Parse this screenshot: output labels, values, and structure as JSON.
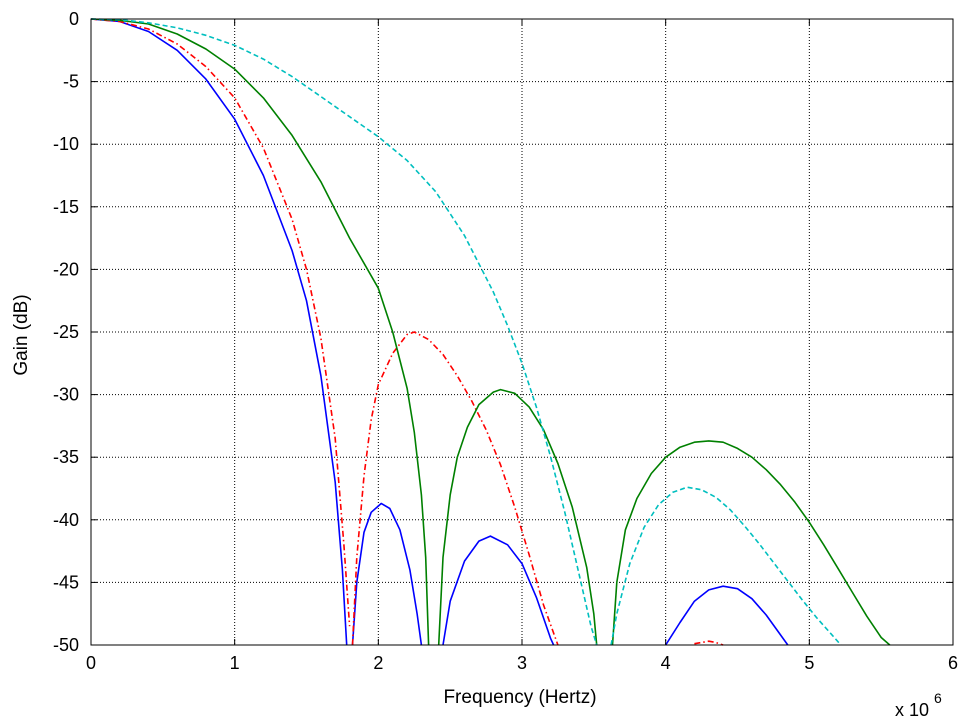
{
  "chart_data": {
    "type": "line",
    "title": "",
    "xlabel": "Frequency (Hertz)",
    "ylabel": "Gain (dB)",
    "x_exponent_label": {
      "base": "x 10",
      "exp": "6"
    },
    "xlim": [
      0,
      6
    ],
    "ylim": [
      -50,
      0
    ],
    "x_ticks": [
      0,
      1,
      2,
      3,
      4,
      5,
      6
    ],
    "y_ticks": [
      0,
      -5,
      -10,
      -15,
      -20,
      -25,
      -30,
      -35,
      -40,
      -45,
      -50
    ],
    "x_tick_labels": [
      "0",
      "1",
      "2",
      "3",
      "4",
      "5",
      "6"
    ],
    "y_tick_labels": [
      "0",
      "-5",
      "-10",
      "-15",
      "-20",
      "-25",
      "-30",
      "-35",
      "-40",
      "-45",
      "-50"
    ],
    "grid": true,
    "grid_style": "dotted",
    "series": [
      {
        "color": "#0000ff",
        "style": "solid",
        "segments": [
          [
            [
              0,
              0
            ],
            [
              0.2,
              -0.2
            ],
            [
              0.4,
              -1.0
            ],
            [
              0.6,
              -2.5
            ],
            [
              0.8,
              -4.8
            ],
            [
              1.0,
              -8.0
            ],
            [
              1.2,
              -12.5
            ],
            [
              1.4,
              -18.5
            ],
            [
              1.5,
              -22.5
            ],
            [
              1.6,
              -28.5
            ],
            [
              1.7,
              -37
            ],
            [
              1.75,
              -44
            ],
            [
              1.78,
              -50
            ]
          ],
          [
            [
              1.82,
              -50
            ],
            [
              1.85,
              -45
            ],
            [
              1.9,
              -41
            ],
            [
              1.95,
              -39.4
            ],
            [
              2.02,
              -38.7
            ],
            [
              2.08,
              -39.1
            ],
            [
              2.15,
              -40.8
            ],
            [
              2.22,
              -44.0
            ],
            [
              2.27,
              -47.5
            ],
            [
              2.3,
              -50
            ]
          ],
          [
            [
              2.45,
              -50
            ],
            [
              2.5,
              -46.5
            ],
            [
              2.6,
              -43.3
            ],
            [
              2.7,
              -41.7
            ],
            [
              2.78,
              -41.3
            ],
            [
              2.9,
              -42.0
            ],
            [
              3.0,
              -43.5
            ],
            [
              3.1,
              -46.2
            ],
            [
              3.2,
              -49.5
            ],
            [
              3.22,
              -50
            ]
          ],
          [
            [
              4.0,
              -50
            ],
            [
              4.1,
              -48.2
            ],
            [
              4.2,
              -46.5
            ],
            [
              4.3,
              -45.6
            ],
            [
              4.4,
              -45.3
            ],
            [
              4.5,
              -45.5
            ],
            [
              4.6,
              -46.3
            ],
            [
              4.7,
              -47.6
            ],
            [
              4.8,
              -49.2
            ],
            [
              4.85,
              -50
            ]
          ]
        ]
      },
      {
        "color": "#ff0000",
        "style": "dashdot",
        "segments": [
          [
            [
              0,
              0
            ],
            [
              0.2,
              -0.2
            ],
            [
              0.4,
              -0.8
            ],
            [
              0.6,
              -2.0
            ],
            [
              0.8,
              -3.8
            ],
            [
              1.0,
              -6.3
            ],
            [
              1.2,
              -10.3
            ],
            [
              1.4,
              -16.0
            ],
            [
              1.5,
              -20.0
            ],
            [
              1.6,
              -25.5
            ],
            [
              1.7,
              -33.5
            ],
            [
              1.76,
              -42
            ],
            [
              1.8,
              -48.5
            ]
          ],
          [
            [
              1.82,
              -50
            ],
            [
              1.85,
              -43
            ],
            [
              1.9,
              -36.5
            ],
            [
              1.95,
              -32
            ],
            [
              2.0,
              -29.2
            ],
            [
              2.1,
              -26.7
            ],
            [
              2.2,
              -25.2
            ],
            [
              2.25,
              -25.0
            ],
            [
              2.35,
              -25.6
            ],
            [
              2.45,
              -26.8
            ],
            [
              2.55,
              -28.5
            ],
            [
              2.65,
              -30.5
            ],
            [
              2.75,
              -32.8
            ],
            [
              2.85,
              -35.6
            ],
            [
              2.95,
              -39.0
            ],
            [
              3.05,
              -42.8
            ],
            [
              3.15,
              -46.8
            ],
            [
              3.25,
              -50
            ]
          ],
          [
            [
              4.2,
              -49.9
            ],
            [
              4.3,
              -49.7
            ],
            [
              4.35,
              -49.8
            ],
            [
              4.4,
              -50
            ]
          ]
        ]
      },
      {
        "color": "#008000",
        "style": "solid",
        "segments": [
          [
            [
              0,
              0
            ],
            [
              0.2,
              -0.1
            ],
            [
              0.4,
              -0.4
            ],
            [
              0.6,
              -1.2
            ],
            [
              0.8,
              -2.4
            ],
            [
              1.0,
              -4.0
            ],
            [
              1.2,
              -6.3
            ],
            [
              1.4,
              -9.3
            ],
            [
              1.6,
              -13.0
            ],
            [
              1.8,
              -17.5
            ],
            [
              2.0,
              -21.5
            ],
            [
              2.1,
              -25.0
            ],
            [
              2.2,
              -29.5
            ],
            [
              2.25,
              -33
            ],
            [
              2.3,
              -38
            ],
            [
              2.33,
              -43
            ],
            [
              2.35,
              -50
            ]
          ],
          [
            [
              2.42,
              -50
            ],
            [
              2.45,
              -43
            ],
            [
              2.5,
              -38
            ],
            [
              2.55,
              -35
            ],
            [
              2.62,
              -32.6
            ],
            [
              2.7,
              -30.8
            ],
            [
              2.8,
              -29.8
            ],
            [
              2.85,
              -29.6
            ],
            [
              2.95,
              -29.9
            ],
            [
              3.05,
              -31.0
            ],
            [
              3.15,
              -32.8
            ],
            [
              3.25,
              -35.5
            ],
            [
              3.35,
              -39.0
            ],
            [
              3.45,
              -43.8
            ],
            [
              3.5,
              -47.5
            ],
            [
              3.52,
              -50
            ]
          ],
          [
            [
              3.63,
              -50
            ],
            [
              3.66,
              -45
            ],
            [
              3.72,
              -40.8
            ],
            [
              3.8,
              -38.3
            ],
            [
              3.9,
              -36.3
            ],
            [
              4.0,
              -35.0
            ],
            [
              4.1,
              -34.2
            ],
            [
              4.2,
              -33.8
            ],
            [
              4.3,
              -33.7
            ],
            [
              4.4,
              -33.8
            ],
            [
              4.5,
              -34.3
            ],
            [
              4.6,
              -35.0
            ],
            [
              4.7,
              -36.0
            ],
            [
              4.8,
              -37.2
            ],
            [
              4.9,
              -38.6
            ],
            [
              5.0,
              -40.2
            ],
            [
              5.1,
              -42.0
            ],
            [
              5.2,
              -43.9
            ],
            [
              5.3,
              -45.8
            ],
            [
              5.4,
              -47.7
            ],
            [
              5.5,
              -49.4
            ],
            [
              5.56,
              -50
            ]
          ]
        ]
      },
      {
        "color": "#00bfbf",
        "style": "dashed",
        "segments": [
          [
            [
              0,
              0
            ],
            [
              0.2,
              -0.05
            ],
            [
              0.4,
              -0.3
            ],
            [
              0.6,
              -0.7
            ],
            [
              0.8,
              -1.3
            ],
            [
              1.0,
              -2.1
            ],
            [
              1.2,
              -3.2
            ],
            [
              1.4,
              -4.6
            ],
            [
              1.6,
              -6.2
            ],
            [
              1.8,
              -7.8
            ],
            [
              2.0,
              -9.4
            ],
            [
              2.2,
              -11.3
            ],
            [
              2.4,
              -13.8
            ],
            [
              2.6,
              -17.3
            ],
            [
              2.8,
              -21.8
            ],
            [
              2.9,
              -24.5
            ],
            [
              3.0,
              -27.5
            ],
            [
              3.1,
              -31.0
            ],
            [
              3.2,
              -35.0
            ],
            [
              3.3,
              -39.5
            ],
            [
              3.4,
              -44.5
            ],
            [
              3.48,
              -48.5
            ],
            [
              3.52,
              -50
            ]
          ],
          [
            [
              3.62,
              -50
            ],
            [
              3.66,
              -47.5
            ],
            [
              3.75,
              -43.5
            ],
            [
              3.85,
              -40.6
            ],
            [
              3.95,
              -38.8
            ],
            [
              4.05,
              -37.8
            ],
            [
              4.15,
              -37.4
            ],
            [
              4.25,
              -37.6
            ],
            [
              4.35,
              -38.2
            ],
            [
              4.45,
              -39.2
            ],
            [
              4.55,
              -40.5
            ],
            [
              4.65,
              -41.9
            ],
            [
              4.75,
              -43.4
            ],
            [
              4.85,
              -44.9
            ],
            [
              4.95,
              -46.4
            ],
            [
              5.05,
              -47.8
            ],
            [
              5.15,
              -49.1
            ],
            [
              5.22,
              -50
            ]
          ]
        ]
      }
    ]
  }
}
